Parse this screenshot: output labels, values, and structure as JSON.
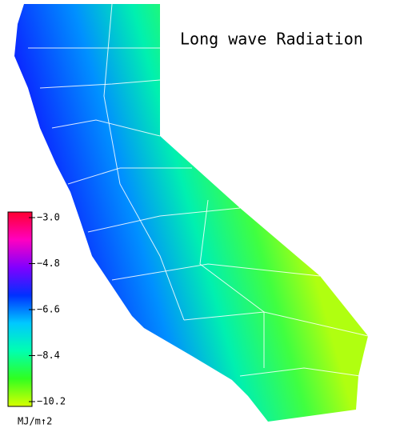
{
  "title": "Long wave Radiation",
  "colorbar": {
    "label": "MJ/m↑2",
    "lim": [
      -10.2,
      -3.0
    ],
    "colors": [
      "#d8ff00",
      "#30ff20",
      "#00ffb0",
      "#00c8ff",
      "#0030ff",
      "#8000ff",
      "#ff00c0",
      "#ff0030"
    ],
    "ticks": [
      {
        "value": -3.0,
        "label": "−3.0"
      },
      {
        "value": -4.8,
        "label": "−4.8"
      },
      {
        "value": -6.6,
        "label": "−6.6"
      },
      {
        "value": -8.4,
        "label": "−8.4"
      },
      {
        "value": -10.2,
        "label": "−10.2"
      }
    ]
  }
}
